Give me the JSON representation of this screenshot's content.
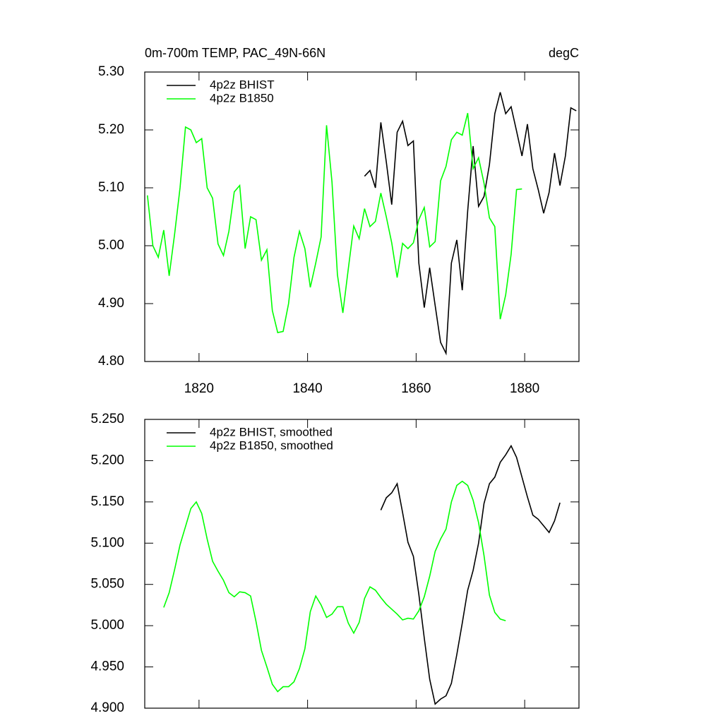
{
  "chart_data": [
    {
      "type": "line",
      "title": "0m-700m TEMP, PAC_49N-66N",
      "units": "degC",
      "xlim": [
        1810,
        1890
      ],
      "xticks": [
        1820,
        1840,
        1860,
        1880
      ],
      "xtick_labels": true,
      "ylim": [
        4.8,
        5.3
      ],
      "yticks": [
        {
          "value": 4.8,
          "label": "4.80"
        },
        {
          "value": 4.9,
          "label": "4.90"
        },
        {
          "value": 5.0,
          "label": "5.00"
        },
        {
          "value": 5.1,
          "label": "5.10"
        },
        {
          "value": 5.2,
          "label": "5.20"
        },
        {
          "value": 5.3,
          "label": "5.30"
        }
      ],
      "legend": "upper left",
      "series": [
        {
          "name": "4p2z BHIST",
          "color": "#000000",
          "x": [
            1850.5,
            1851.5,
            1852.5,
            1853.5,
            1854.5,
            1855.5,
            1856.5,
            1857.5,
            1858.5,
            1859.5,
            1860.5,
            1861.5,
            1862.5,
            1863.5,
            1864.5,
            1865.5,
            1866.5,
            1867.5,
            1868.5,
            1869.5,
            1870.5,
            1871.5,
            1872.5,
            1873.5,
            1874.5,
            1875.5,
            1876.5,
            1877.5,
            1878.5,
            1879.5,
            1880.5,
            1881.5,
            1882.5,
            1883.5,
            1884.5,
            1885.5,
            1886.5,
            1887.5,
            1888.5,
            1889.5
          ],
          "values": [
            5.12,
            5.13,
            5.1,
            5.213,
            5.145,
            5.071,
            5.196,
            5.215,
            5.173,
            5.181,
            4.97,
            4.893,
            4.962,
            4.897,
            4.833,
            4.814,
            4.97,
            5.01,
            4.923,
            5.06,
            5.172,
            5.068,
            5.085,
            5.14,
            5.228,
            5.265,
            5.228,
            5.24,
            5.198,
            5.155,
            5.21,
            5.133,
            5.097,
            5.056,
            5.092,
            5.16,
            5.104,
            5.155,
            5.238,
            5.233
          ]
        },
        {
          "name": "4p2z B1850",
          "color": "#00ff00",
          "x": [
            1810.5,
            1811.5,
            1812.5,
            1813.5,
            1814.5,
            1815.5,
            1816.5,
            1817.5,
            1818.5,
            1819.5,
            1820.5,
            1821.5,
            1822.5,
            1823.5,
            1824.5,
            1825.5,
            1826.5,
            1827.5,
            1828.5,
            1829.5,
            1830.5,
            1831.5,
            1832.5,
            1833.5,
            1834.5,
            1835.5,
            1836.5,
            1837.5,
            1838.5,
            1839.5,
            1840.5,
            1841.5,
            1842.5,
            1843.5,
            1844.5,
            1845.5,
            1846.5,
            1847.5,
            1848.5,
            1849.5,
            1850.5,
            1851.5,
            1852.5,
            1853.5,
            1854.5,
            1855.5,
            1856.5,
            1857.5,
            1858.5,
            1859.5,
            1860.5,
            1861.5,
            1862.5,
            1863.5,
            1864.5,
            1865.5,
            1866.5,
            1867.5,
            1868.5,
            1869.5,
            1870.5,
            1871.5,
            1872.5,
            1873.5,
            1874.5,
            1875.5,
            1876.5,
            1877.5,
            1878.5,
            1879.5
          ],
          "values": [
            5.087,
            5.0,
            4.98,
            5.027,
            4.948,
            5.02,
            5.1,
            5.205,
            5.2,
            5.178,
            5.185,
            5.1,
            5.082,
            5.003,
            4.983,
            5.025,
            5.093,
            5.104,
            4.995,
            5.05,
            5.045,
            4.975,
            4.993,
            4.888,
            4.85,
            4.852,
            4.9,
            4.98,
            5.025,
            4.995,
            4.928,
            4.97,
            5.015,
            5.208,
            5.11,
            4.95,
            4.884,
            4.96,
            5.034,
            5.012,
            5.064,
            5.033,
            5.042,
            5.091,
            5.05,
            5.005,
            4.945,
            5.004,
            4.995,
            5.005,
            5.045,
            5.066,
            4.998,
            5.007,
            5.112,
            5.137,
            5.183,
            5.196,
            5.191,
            5.229,
            5.133,
            5.152,
            5.108,
            5.048,
            5.033,
            4.873,
            4.915,
            4.985,
            5.097,
            5.098
          ]
        }
      ]
    },
    {
      "type": "line",
      "xlim": [
        1810,
        1890
      ],
      "xticks": [
        1820,
        1840,
        1860,
        1880
      ],
      "xtick_labels": false,
      "ylim": [
        4.9,
        5.25
      ],
      "yticks": [
        {
          "value": 4.9,
          "label": "4.900"
        },
        {
          "value": 4.95,
          "label": "4.950"
        },
        {
          "value": 5.0,
          "label": "5.000"
        },
        {
          "value": 5.05,
          "label": "5.050"
        },
        {
          "value": 5.1,
          "label": "5.100"
        },
        {
          "value": 5.15,
          "label": "5.150"
        },
        {
          "value": 5.2,
          "label": "5.200"
        },
        {
          "value": 5.25,
          "label": "5.250"
        }
      ],
      "legend": "upper left",
      "series": [
        {
          "name": "4p2z BHIST, smoothed",
          "color": "#000000",
          "x": [
            1853.5,
            1854.5,
            1855.5,
            1856.5,
            1857.5,
            1858.5,
            1859.5,
            1860.5,
            1861.5,
            1862.5,
            1863.5,
            1864.5,
            1865.5,
            1866.5,
            1867.5,
            1868.5,
            1869.5,
            1870.5,
            1871.5,
            1872.5,
            1873.5,
            1874.5,
            1875.5,
            1876.5,
            1877.5,
            1878.5,
            1879.5,
            1880.5,
            1881.5,
            1882.5,
            1883.5,
            1884.5,
            1885.5,
            1886.5
          ],
          "values": [
            5.14,
            5.155,
            5.161,
            5.172,
            5.137,
            5.101,
            5.084,
            5.038,
            4.985,
            4.935,
            4.905,
            4.911,
            4.915,
            4.93,
            4.965,
            5.003,
            5.043,
            5.067,
            5.1,
            5.148,
            5.172,
            5.18,
            5.198,
            5.207,
            5.218,
            5.204,
            5.18,
            5.156,
            5.134,
            5.129,
            5.121,
            5.113,
            5.127,
            5.149
          ]
        },
        {
          "name": "4p2z B1850, smoothed",
          "color": "#00ff00",
          "x": [
            1813.5,
            1814.5,
            1815.5,
            1816.5,
            1817.5,
            1818.5,
            1819.5,
            1820.5,
            1821.5,
            1822.5,
            1823.5,
            1824.5,
            1825.5,
            1826.5,
            1827.5,
            1828.5,
            1829.5,
            1830.5,
            1831.5,
            1832.5,
            1833.5,
            1834.5,
            1835.5,
            1836.5,
            1837.5,
            1838.5,
            1839.5,
            1840.5,
            1841.5,
            1842.5,
            1843.5,
            1844.5,
            1845.5,
            1846.5,
            1847.5,
            1848.5,
            1849.5,
            1850.5,
            1851.5,
            1852.5,
            1853.5,
            1854.5,
            1855.5,
            1856.5,
            1857.5,
            1858.5,
            1859.5,
            1860.5,
            1861.5,
            1862.5,
            1863.5,
            1864.5,
            1865.5,
            1866.5,
            1867.5,
            1868.5,
            1869.5,
            1870.5,
            1871.5,
            1872.5,
            1873.5,
            1874.5,
            1875.5,
            1876.5
          ],
          "values": [
            5.022,
            5.04,
            5.068,
            5.098,
            5.12,
            5.142,
            5.15,
            5.136,
            5.105,
            5.078,
            5.066,
            5.055,
            5.04,
            5.035,
            5.041,
            5.04,
            5.036,
            5.005,
            4.97,
            4.95,
            4.929,
            4.92,
            4.926,
            4.926,
            4.932,
            4.948,
            4.972,
            5.017,
            5.036,
            5.025,
            5.01,
            5.014,
            5.023,
            5.023,
            5.003,
            4.991,
            5.004,
            5.033,
            5.047,
            5.043,
            5.034,
            5.026,
            5.02,
            5.014,
            5.007,
            5.009,
            5.008,
            5.018,
            5.035,
            5.06,
            5.09,
            5.105,
            5.117,
            5.15,
            5.17,
            5.175,
            5.17,
            5.152,
            5.125,
            5.085,
            5.037,
            5.016,
            5.008,
            5.006
          ]
        }
      ]
    }
  ]
}
